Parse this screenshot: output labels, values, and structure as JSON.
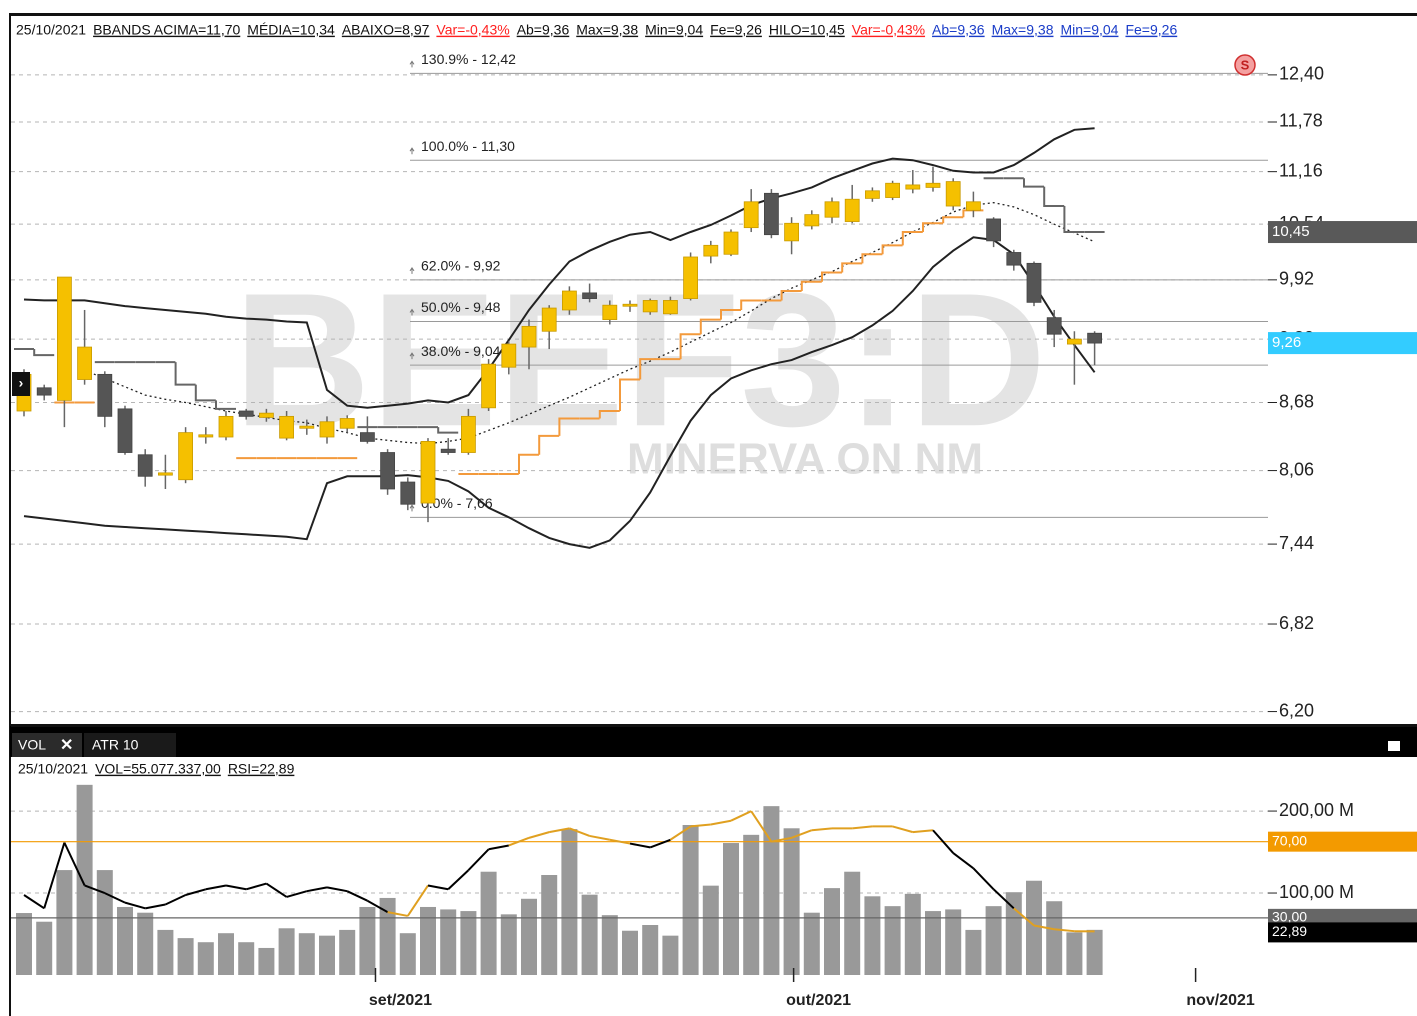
{
  "header": [
    {
      "text": "25/10/2021"
    },
    {
      "text": "BBANDS ACIMA=11,70",
      "underline": true
    },
    {
      "text": "MÉDIA=10,34",
      "underline": true
    },
    {
      "text": "ABAIXO=8,97",
      "underline": true
    },
    {
      "text": "Var=-0,43%",
      "underline": true,
      "color": "#ff2020"
    },
    {
      "text": "Ab=9,36",
      "underline": true
    },
    {
      "text": "Max=9,38",
      "underline": true
    },
    {
      "text": "Min=9,04",
      "underline": true
    },
    {
      "text": "Fe=9,26",
      "underline": true
    },
    {
      "text": "HILO=10,45",
      "underline": true
    },
    {
      "text": "Var=-0,43%",
      "underline": true,
      "color": "#ff2020"
    },
    {
      "text": "Ab=9,36",
      "underline": true,
      "color": "#1a3cc8"
    },
    {
      "text": "Max=9,38",
      "underline": true,
      "color": "#1a3cc8"
    },
    {
      "text": "Min=9,04",
      "underline": true,
      "color": "#1a3cc8"
    },
    {
      "text": "Fe=9,26",
      "underline": true,
      "color": "#1a3cc8"
    }
  ],
  "watermark": {
    "symbol": "BEEF3:D",
    "name": "MINERVA ON NM"
  },
  "signal_icon": "S",
  "tabs": [
    "VOL",
    "ATR 10"
  ],
  "lower_info": [
    "25/10/2021",
    "VOL=55.077.337,00",
    "RSI=22,89"
  ],
  "chart_data": [
    {
      "type": "candlestick",
      "log_scale": true,
      "grid": true,
      "up_color": "#f5c000",
      "down_color": "#555555",
      "ylim": [
        6.11,
        12.81
      ],
      "yticks": [
        {
          "value": 12.4,
          "label": "12,40"
        },
        {
          "value": 11.78,
          "label": "11,78"
        },
        {
          "value": 11.16,
          "label": "11,16"
        },
        {
          "value": 10.54,
          "label": "10,54"
        },
        {
          "value": 9.92,
          "label": "9,92"
        },
        {
          "value": 9.3,
          "label": "9,30"
        },
        {
          "value": 8.68,
          "label": "8,68"
        },
        {
          "value": 8.06,
          "label": "8,06"
        },
        {
          "value": 7.44,
          "label": "7,44"
        },
        {
          "value": 6.82,
          "label": "6,82"
        },
        {
          "value": 6.2,
          "label": "6,20"
        }
      ],
      "open": [
        8.6,
        8.82,
        8.7,
        8.9,
        8.95,
        8.62,
        8.2,
        8.02,
        7.98,
        8.36,
        8.36,
        8.6,
        8.54,
        8.35,
        8.44,
        8.36,
        8.44,
        8.4,
        8.22,
        7.96,
        7.78,
        8.25,
        8.22,
        8.63,
        9.02,
        9.22,
        9.38,
        9.6,
        9.78,
        9.5,
        9.64,
        9.58,
        9.56,
        9.72,
        10.18,
        10.2,
        10.5,
        10.9,
        10.35,
        10.52,
        10.62,
        10.57,
        10.84,
        10.85,
        10.95,
        10.97,
        10.75,
        10.7,
        10.6,
        10.22,
        10.1,
        9.52,
        9.25,
        9.36
      ],
      "high": [
        9.0,
        8.85,
        9.95,
        9.6,
        8.98,
        8.65,
        8.25,
        8.2,
        8.45,
        8.45,
        8.6,
        8.62,
        8.62,
        8.6,
        8.52,
        8.55,
        8.56,
        8.55,
        8.25,
        8.0,
        8.35,
        8.35,
        8.62,
        9.1,
        9.28,
        9.5,
        9.65,
        9.85,
        9.88,
        9.7,
        9.7,
        9.72,
        9.74,
        10.22,
        10.35,
        10.48,
        10.95,
        10.95,
        10.62,
        10.7,
        10.85,
        11.0,
        10.97,
        11.05,
        11.18,
        11.22,
        11.08,
        10.92,
        10.62,
        10.25,
        10.12,
        9.6,
        9.38,
        9.38
      ],
      "low": [
        8.55,
        8.7,
        8.45,
        8.85,
        8.45,
        8.2,
        7.92,
        7.9,
        7.95,
        8.3,
        8.33,
        8.52,
        8.5,
        8.33,
        8.38,
        8.3,
        8.4,
        8.3,
        7.85,
        7.72,
        7.62,
        8.2,
        8.2,
        8.6,
        8.95,
        9.0,
        9.2,
        9.55,
        9.68,
        9.45,
        9.58,
        9.55,
        9.55,
        9.7,
        10.1,
        10.18,
        10.45,
        10.38,
        10.2,
        10.48,
        10.55,
        10.55,
        10.8,
        10.82,
        10.9,
        10.92,
        10.7,
        10.62,
        10.28,
        10.02,
        9.64,
        9.22,
        8.85,
        9.04
      ],
      "close": [
        8.95,
        8.75,
        9.95,
        9.22,
        8.55,
        8.22,
        8.01,
        8.04,
        8.4,
        8.38,
        8.55,
        8.55,
        8.58,
        8.55,
        8.46,
        8.5,
        8.53,
        8.32,
        7.9,
        7.77,
        8.32,
        8.22,
        8.55,
        9.05,
        9.25,
        9.43,
        9.62,
        9.8,
        9.72,
        9.65,
        9.66,
        9.7,
        9.7,
        10.17,
        10.3,
        10.45,
        10.8,
        10.42,
        10.55,
        10.65,
        10.8,
        10.83,
        10.93,
        11.02,
        11.0,
        11.02,
        11.04,
        10.8,
        10.35,
        10.08,
        9.68,
        9.35,
        9.3,
        9.26
      ],
      "bollinger": {
        "color": "#222222",
        "upper": [
          9.71,
          9.7,
          9.7,
          9.7,
          9.67,
          9.64,
          9.62,
          9.6,
          9.58,
          9.56,
          9.53,
          9.51,
          9.5,
          9.48,
          9.47,
          8.8,
          8.65,
          8.63,
          8.65,
          8.67,
          8.7,
          8.68,
          8.75,
          9.0,
          9.29,
          9.6,
          9.87,
          10.12,
          10.24,
          10.34,
          10.42,
          10.45,
          10.36,
          10.45,
          10.53,
          10.64,
          10.76,
          10.84,
          10.9,
          10.97,
          11.08,
          11.17,
          11.26,
          11.32,
          11.3,
          11.24,
          11.17,
          11.15,
          11.15,
          11.24,
          11.39,
          11.56,
          11.68,
          11.7
        ],
        "middle": [
          null,
          null,
          null,
          8.99,
          8.91,
          8.83,
          8.75,
          8.71,
          8.68,
          8.64,
          8.6,
          8.57,
          8.54,
          8.51,
          8.49,
          8.44,
          8.4,
          8.35,
          8.33,
          8.31,
          8.3,
          8.32,
          8.35,
          8.42,
          8.49,
          8.57,
          8.65,
          8.73,
          8.82,
          8.91,
          9.0,
          9.08,
          9.17,
          9.27,
          9.37,
          9.47,
          9.59,
          9.72,
          9.83,
          9.92,
          10.01,
          10.12,
          10.22,
          10.33,
          10.45,
          10.56,
          10.68,
          10.76,
          10.79,
          10.74,
          10.65,
          10.54,
          10.44,
          10.34
        ],
        "lower": [
          7.67,
          7.65,
          7.63,
          7.61,
          7.59,
          7.58,
          7.57,
          7.56,
          7.55,
          7.54,
          7.53,
          7.52,
          7.51,
          7.5,
          7.48,
          7.95,
          8.01,
          8.01,
          8.01,
          8.02,
          8.0,
          7.97,
          7.88,
          7.74,
          7.66,
          7.57,
          7.49,
          7.44,
          7.41,
          7.47,
          7.63,
          7.87,
          8.19,
          8.51,
          8.75,
          8.91,
          8.99,
          9.05,
          9.09,
          9.17,
          9.24,
          9.32,
          9.44,
          9.59,
          9.8,
          10.06,
          10.24,
          10.39,
          10.36,
          10.2,
          9.87,
          9.53,
          9.24,
          8.97
        ]
      },
      "hilo": {
        "up_color": "#f39a3c",
        "down_color": "#666666",
        "up": [
          null,
          null,
          8.68,
          8.68,
          null,
          null,
          null,
          null,
          null,
          null,
          null,
          8.17,
          8.17,
          8.17,
          8.17,
          8.17,
          8.17,
          null,
          null,
          null,
          null,
          null,
          8.03,
          8.03,
          8.03,
          8.2,
          8.37,
          8.53,
          8.53,
          8.6,
          8.9,
          9.1,
          9.1,
          9.35,
          9.5,
          9.6,
          9.7,
          9.7,
          9.8,
          9.9,
          10.0,
          10.1,
          10.2,
          10.3,
          10.45,
          10.55,
          10.62,
          10.7,
          null,
          null,
          null,
          null,
          null,
          null
        ],
        "down": [
          9.2,
          9.14,
          null,
          null,
          9.07,
          9.07,
          9.07,
          9.07,
          8.85,
          8.7,
          8.62,
          null,
          null,
          null,
          null,
          null,
          null,
          8.45,
          8.45,
          8.45,
          8.45,
          8.4,
          null,
          null,
          null,
          null,
          null,
          null,
          null,
          null,
          null,
          null,
          null,
          null,
          null,
          null,
          null,
          null,
          null,
          null,
          null,
          null,
          null,
          null,
          null,
          null,
          null,
          null,
          11.08,
          11.08,
          10.98,
          10.75,
          10.45,
          10.45
        ]
      },
      "fibonacci": [
        {
          "value": 12.42,
          "label": "130.9% - 12,42"
        },
        {
          "value": 11.3,
          "label": "100.0% - 11,30"
        },
        {
          "value": 9.92,
          "label": "62.0% - 9,92"
        },
        {
          "value": 9.48,
          "label": "50.0% - 9,48"
        },
        {
          "value": 9.04,
          "label": "38.0% - 9,04"
        },
        {
          "value": 7.66,
          "label": "0.0% - 7,66"
        }
      ],
      "price_tags": [
        {
          "value": 10.45,
          "label": "10,45",
          "color": "#595959"
        },
        {
          "value": 9.26,
          "label": "9,26",
          "color": "#33ccff"
        }
      ]
    },
    {
      "type": "bar",
      "color": "#999999",
      "ylim": [
        0,
        244
      ],
      "yticks": [
        {
          "value": 100,
          "label": "100,00 M"
        },
        {
          "value": 200,
          "label": "200,00 M"
        }
      ],
      "values": [
        75.6,
        65,
        128,
        232,
        128,
        83,
        76,
        55,
        45,
        40,
        51,
        40,
        33,
        57,
        51,
        48,
        55,
        83,
        94,
        51,
        83,
        80,
        78,
        126,
        74,
        93,
        122,
        178,
        98,
        73,
        54,
        61,
        48,
        183,
        109,
        161,
        171,
        206,
        179,
        76,
        106,
        126,
        96,
        84,
        99,
        78,
        80,
        55,
        84,
        101,
        115,
        90,
        52,
        55.08
      ],
      "xticks": [
        {
          "value": 17.4,
          "label": "set/2021"
        },
        {
          "value": 38.1,
          "label": "out/2021"
        },
        {
          "value": 58.0,
          "label": "nov/2021"
        }
      ],
      "rsi": {
        "ylim": [
          0,
          105
        ],
        "color": "#000000",
        "zone_color": "#e0a020",
        "values": [
          42,
          35,
          69.5,
          47,
          43,
          38,
          35,
          37,
          42,
          45,
          47,
          45,
          48,
          41,
          44,
          46,
          44,
          39,
          33,
          31,
          47,
          45,
          55,
          66,
          68,
          72,
          75,
          77,
          73,
          71,
          69,
          67,
          71,
          78,
          79,
          81,
          86,
          70,
          72,
          76,
          77,
          77,
          78,
          78,
          75,
          76,
          64,
          56,
          45,
          35,
          26,
          24,
          23,
          22.89
        ],
        "last_label": "22,89",
        "levels": [
          {
            "value": 70,
            "label": "70,00",
            "color": "#f39a00"
          },
          {
            "value": 30,
            "label": "30,00",
            "color": "#666666"
          }
        ]
      }
    }
  ]
}
